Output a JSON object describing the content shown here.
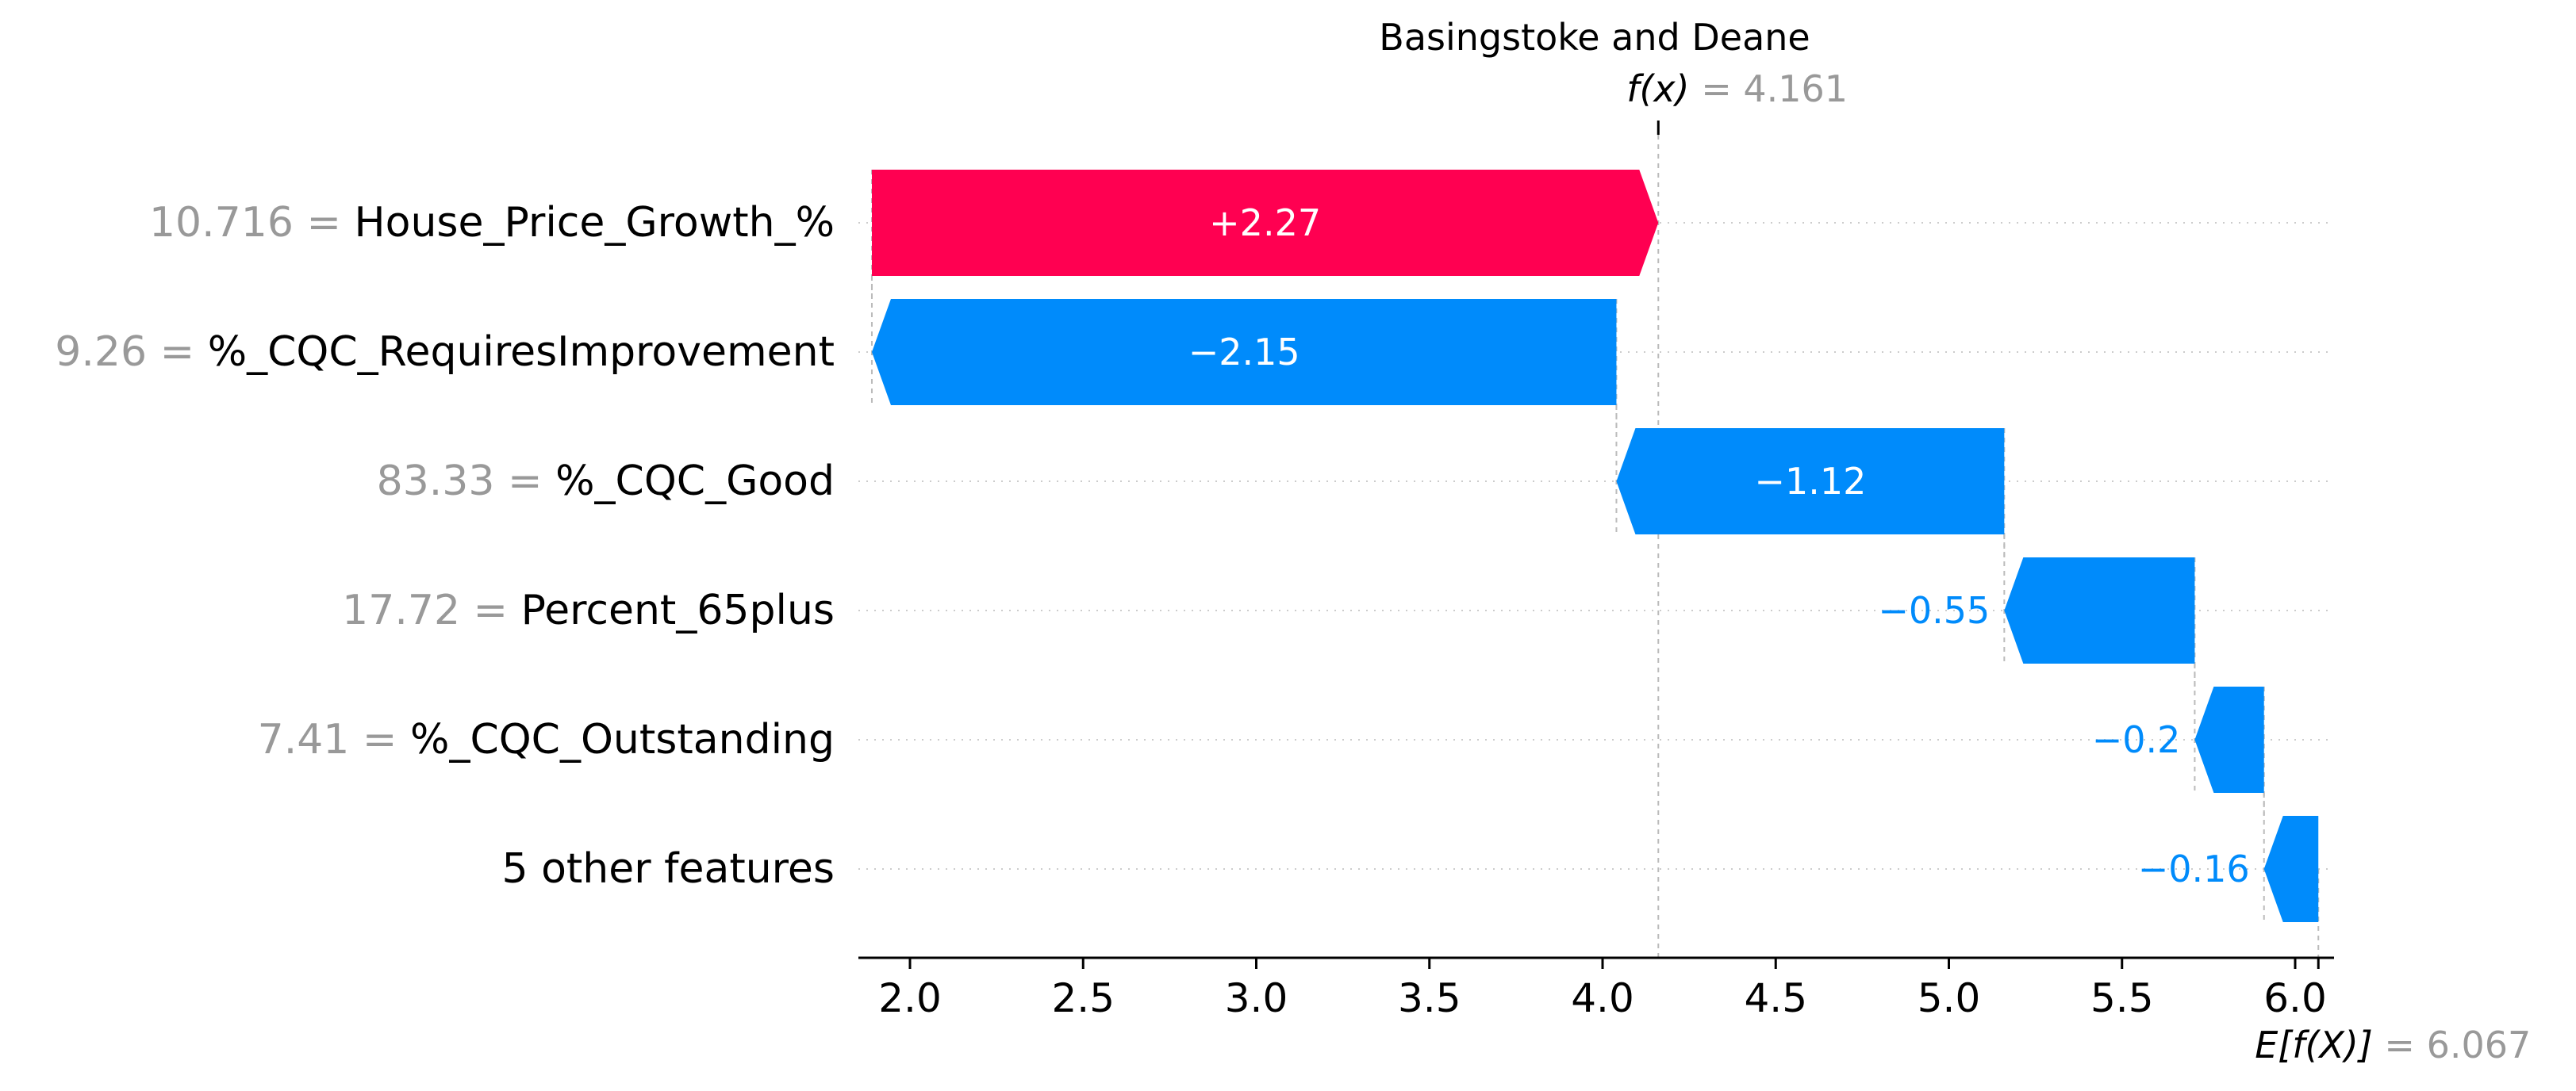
{
  "chart_data": {
    "type": "waterfall",
    "title": "Basingstoke and Deane",
    "fx": {
      "label": "f(x)",
      "value_text": "= 4.161",
      "value": 4.161
    },
    "ex": {
      "label": "E[f(X)]",
      "value_text": "= 6.067",
      "value": 6.067
    },
    "xlim": [
      1.9,
      6.07
    ],
    "xticks": [
      "2.0",
      "2.5",
      "3.0",
      "3.5",
      "4.0",
      "4.5",
      "5.0",
      "5.5",
      "6.0"
    ],
    "rows": [
      {
        "value": "10.716 =",
        "feature": "House_Price_Growth_%",
        "shap": 2.27,
        "shap_label": "+2.27",
        "start": 1.89,
        "end": 4.161
      },
      {
        "value": "9.26 =",
        "feature": "%_CQC_RequiresImprovement",
        "shap": -2.15,
        "shap_label": "−2.15",
        "start": 4.04,
        "end": 1.89
      },
      {
        "value": "83.33 =",
        "feature": "%_CQC_Good",
        "shap": -1.12,
        "shap_label": "−1.12",
        "start": 5.16,
        "end": 4.04
      },
      {
        "value": "17.72 =",
        "feature": "Percent_65plus",
        "shap": -0.55,
        "shap_label": "−0.55",
        "start": 5.71,
        "end": 5.16
      },
      {
        "value": "7.41 =",
        "feature": "%_CQC_Outstanding",
        "shap": -0.2,
        "shap_label": "−0.2",
        "start": 5.91,
        "end": 5.71
      },
      {
        "value": "",
        "feature": "5 other features",
        "shap": -0.16,
        "shap_label": "−0.16",
        "start": 6.067,
        "end": 5.91
      }
    ],
    "colors": {
      "positive": "#ff0051",
      "negative": "#008bfb",
      "value_gray": "#999999",
      "grid": "#cccccc"
    },
    "grid": true
  }
}
